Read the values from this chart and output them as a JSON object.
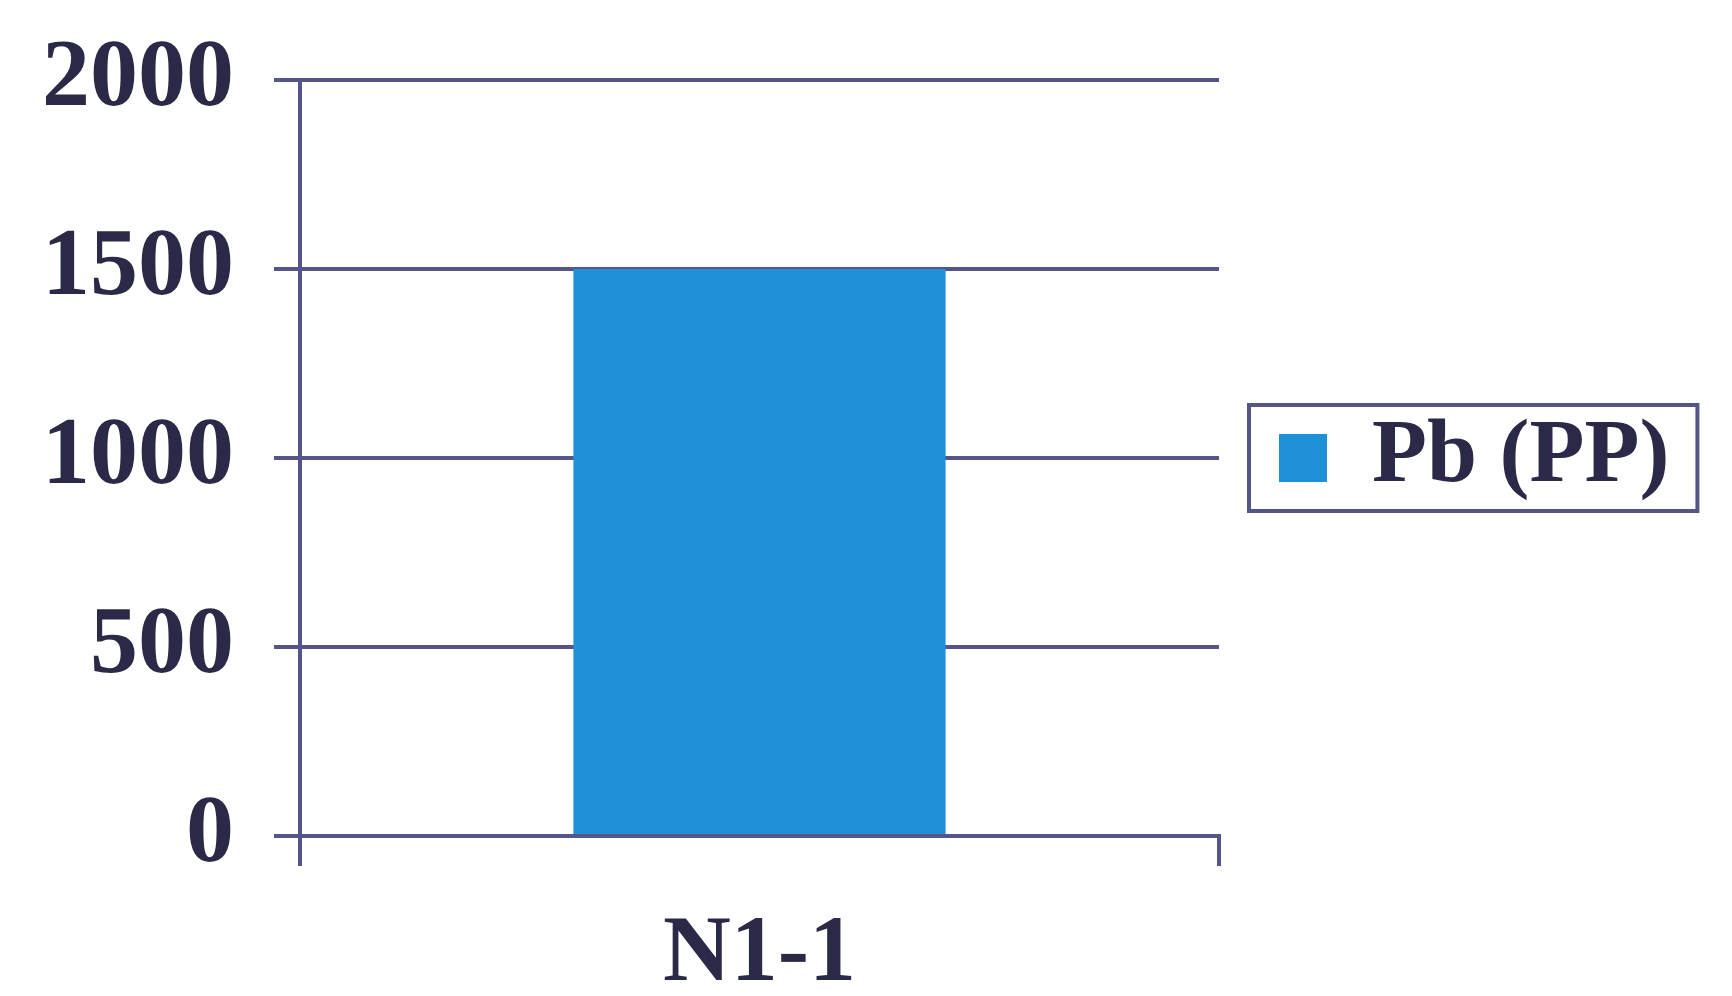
{
  "chart_data": {
    "type": "bar",
    "categories": [
      "N1-1"
    ],
    "series": [
      {
        "name": "Pb (PP)",
        "color": "#2090d8",
        "values": [
          1500
        ]
      }
    ],
    "ylim": [
      0,
      2000
    ],
    "yticks": [
      0,
      500,
      1000,
      1500,
      2000
    ],
    "grid": "y",
    "legend": "right"
  }
}
